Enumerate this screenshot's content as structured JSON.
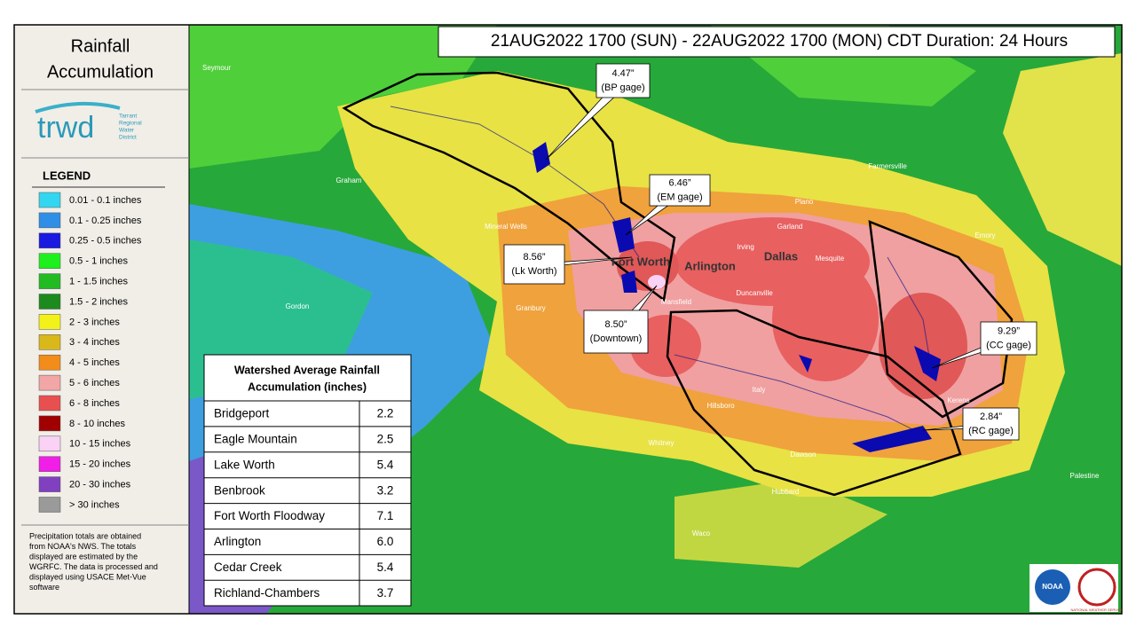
{
  "sidebar": {
    "title_lines": [
      "Rainfall",
      "Accumulation"
    ],
    "logo": "trwd",
    "logo_sub": [
      "Tarrant",
      "Regional",
      "Water",
      "District"
    ],
    "legend_title": "LEGEND",
    "legend": [
      {
        "label": "0.01 - 0.1 inches",
        "color": "#33d6f0"
      },
      {
        "label": "0.1 - 0.25 inches",
        "color": "#2f8ee6"
      },
      {
        "label": "0.25 - 0.5 inches",
        "color": "#1a1ae0"
      },
      {
        "label": "0.5 - 1 inches",
        "color": "#1ef01e"
      },
      {
        "label": "1 - 1.5 inches",
        "color": "#22bb22"
      },
      {
        "label": "1.5 - 2 inches",
        "color": "#1d8a1d"
      },
      {
        "label": "2 - 3 inches",
        "color": "#f2f21a"
      },
      {
        "label": "3 - 4 inches",
        "color": "#d9b81a"
      },
      {
        "label": "4 - 5 inches",
        "color": "#f28c1a"
      },
      {
        "label": "5 - 6 inches",
        "color": "#f2a6a6"
      },
      {
        "label": "6 - 8 inches",
        "color": "#e85050"
      },
      {
        "label": "8 - 10 inches",
        "color": "#a00000"
      },
      {
        "label": "10 - 15 inches",
        "color": "#fad2f5"
      },
      {
        "label": "15 - 20 inches",
        "color": "#f01ee6"
      },
      {
        "label": "20 - 30 inches",
        "color": "#8040c0"
      },
      {
        "label": "> 30 inches",
        "color": "#9a9a9a"
      }
    ],
    "note_lines": [
      "Precipitation totals are obtained",
      "from NOAA's NWS.  The totals",
      "displayed are estimated by the",
      "WGRFC.  The data is processed and",
      "displayed using USACE Met-Vue",
      "software"
    ]
  },
  "header": {
    "title": "21AUG2022 1700 (SUN) - 22AUG2022 1700 (MON) CDT Duration: 24 Hours"
  },
  "table": {
    "title_lines": [
      "Watershed Average Rainfall",
      "Accumulation (inches)"
    ],
    "rows": [
      [
        "Bridgeport",
        "2.2"
      ],
      [
        "Eagle Mountain",
        "2.5"
      ],
      [
        "Lake Worth",
        "5.4"
      ],
      [
        "Benbrook",
        "3.2"
      ],
      [
        "Fort Worth Floodway",
        "7.1"
      ],
      [
        "Arlington",
        "6.0"
      ],
      [
        "Cedar Creek",
        "5.4"
      ],
      [
        "Richland-Chambers",
        "3.7"
      ]
    ]
  },
  "callouts": [
    {
      "value": "4.47”",
      "gage": "(BP gage)"
    },
    {
      "value": "6.46”",
      "gage": "(EM gage)"
    },
    {
      "value": "8.56”",
      "gage": "(Lk Worth)"
    },
    {
      "value": "8.50”",
      "gage": "(Downtown)"
    },
    {
      "value": "9.29”",
      "gage": "(CC gage)"
    },
    {
      "value": "2.84”",
      "gage": "(RC gage)"
    }
  ],
  "places": [
    "Dallas",
    "Fort Worth",
    "Arlington",
    "Irving",
    "Garland",
    "Plano",
    "Mesquite",
    "Mansfield",
    "Duncanville",
    "Granbury",
    "Mineral Wells",
    "Waco",
    "Hillsboro",
    "Whitney",
    "Palestine",
    "Kerens",
    "Italy",
    "Dawson",
    "Emory",
    "Farmersville",
    "Gordon",
    "Seymour",
    "Graham",
    "Hubbard"
  ],
  "agencies": [
    "NOAA",
    "NATIONAL WEATHER SERVICE"
  ]
}
